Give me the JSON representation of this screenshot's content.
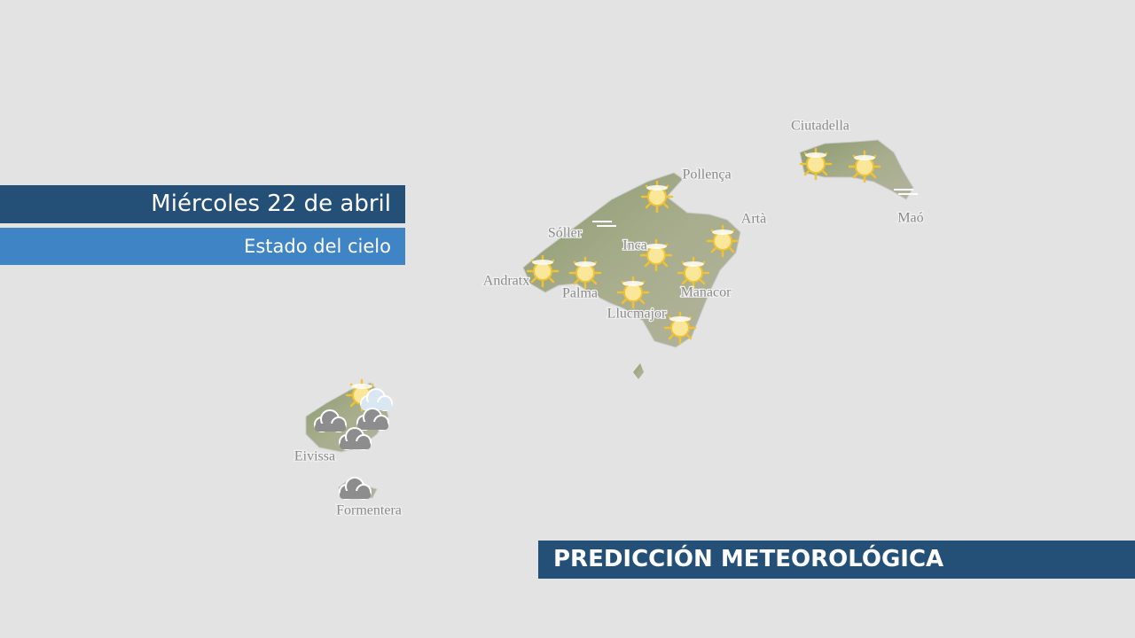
{
  "header": {
    "day": "Miércoles  22 de abril",
    "subtitle": "Estado del cielo"
  },
  "footer": {
    "title": "PREDICCIÓN METEOROLÓGICA"
  },
  "places": [
    {
      "name": "Ciutadella"
    },
    {
      "name": "Pollença"
    },
    {
      "name": "Maó"
    },
    {
      "name": "Artà"
    },
    {
      "name": "Sóller"
    },
    {
      "name": "Inca"
    },
    {
      "name": "Andratx"
    },
    {
      "name": "Palma"
    },
    {
      "name": "Manacor"
    },
    {
      "name": "Llucmajor"
    },
    {
      "name": "Eivissa"
    },
    {
      "name": "Formentera"
    }
  ]
}
